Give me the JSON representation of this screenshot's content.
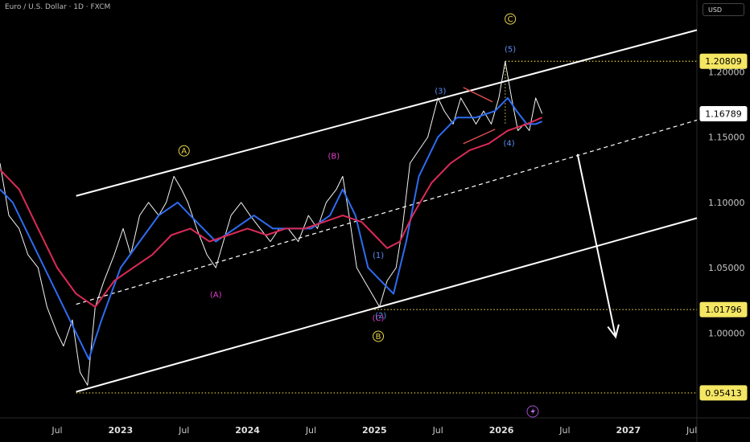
{
  "header": {
    "title": "Euro / U.S. Dollar · 1D · FXCM",
    "currency_button": "USD"
  },
  "chart_data": {
    "type": "line",
    "title": "Euro / U.S. Dollar · 1D · FXCM",
    "xlabel": "",
    "ylabel": "",
    "ylim": [
      0.935,
      1.255
    ],
    "y_ticks": [
      1.0,
      1.05,
      1.1,
      1.15,
      1.2
    ],
    "x_ticks": [
      "Jul",
      "2023",
      "Jul",
      "2024",
      "Jul",
      "2025",
      "Jul",
      "2026",
      "Jul",
      "2027",
      "Jul"
    ],
    "x_tick_dates": [
      2022.5,
      2023.0,
      2023.5,
      2024.0,
      2024.5,
      2025.0,
      2025.5,
      2026.0,
      2026.5,
      2027.0,
      2027.5
    ],
    "xlim": [
      2022.05,
      2027.54
    ],
    "price_tags": [
      {
        "value": "1.20809",
        "style": "yellow"
      },
      {
        "value": "1.16789",
        "style": "white"
      },
      {
        "value": "1.01796",
        "style": "yellow"
      },
      {
        "value": "0.95413",
        "style": "yellow"
      }
    ],
    "series": [
      {
        "color": "#f5f5f5",
        "x": [
          2022.05,
          2022.12,
          2022.2,
          2022.27,
          2022.35,
          2022.42,
          2022.5,
          2022.55,
          2022.62,
          2022.68,
          2022.74,
          2022.8,
          2022.87,
          2022.95,
          2023.02,
          2023.08,
          2023.15,
          2023.22,
          2023.3,
          2023.36,
          2023.42,
          2023.48,
          2023.53,
          2023.6,
          2023.68,
          2023.75,
          2023.81,
          2023.87,
          2023.95,
          2024.02,
          2024.1,
          2024.18,
          2024.25,
          2024.32,
          2024.4,
          2024.48,
          2024.55,
          2024.62,
          2024.7,
          2024.75,
          2024.8,
          2024.86,
          2024.92,
          2024.98,
          2025.04,
          2025.1,
          2025.17,
          2025.22,
          2025.28,
          2025.35,
          2025.42,
          2025.5,
          2025.55,
          2025.62,
          2025.68,
          2025.74,
          2025.8,
          2025.86,
          2025.92,
          2025.98,
          2026.03,
          2026.08,
          2026.13,
          2026.18,
          2026.22,
          2026.27,
          2026.32
        ],
        "y": [
          1.13,
          1.09,
          1.08,
          1.06,
          1.05,
          1.02,
          1.0,
          0.99,
          1.01,
          0.97,
          0.96,
          1.02,
          1.04,
          1.06,
          1.08,
          1.06,
          1.09,
          1.1,
          1.09,
          1.1,
          1.12,
          1.11,
          1.1,
          1.08,
          1.06,
          1.05,
          1.07,
          1.09,
          1.1,
          1.09,
          1.08,
          1.07,
          1.08,
          1.08,
          1.07,
          1.09,
          1.08,
          1.1,
          1.11,
          1.12,
          1.09,
          1.05,
          1.04,
          1.03,
          1.02,
          1.04,
          1.05,
          1.08,
          1.13,
          1.14,
          1.15,
          1.18,
          1.17,
          1.16,
          1.18,
          1.17,
          1.16,
          1.17,
          1.16,
          1.18,
          1.208,
          1.18,
          1.155,
          1.16,
          1.155,
          1.18,
          1.168
        ]
      },
      {
        "color": "#2e6cf0",
        "x": [
          2022.05,
          2022.15,
          2022.3,
          2022.45,
          2022.55,
          2022.65,
          2022.75,
          2022.85,
          2023.0,
          2023.15,
          2023.3,
          2023.45,
          2023.6,
          2023.75,
          2023.9,
          2024.05,
          2024.2,
          2024.35,
          2024.5,
          2024.65,
          2024.75,
          2024.85,
          2024.95,
          2025.05,
          2025.15,
          2025.25,
          2025.35,
          2025.5,
          2025.65,
          2025.8,
          2025.95,
          2026.05,
          2026.12,
          2026.2,
          2026.27,
          2026.32
        ],
        "y": [
          1.11,
          1.1,
          1.07,
          1.04,
          1.02,
          1.0,
          0.98,
          1.01,
          1.05,
          1.07,
          1.09,
          1.1,
          1.085,
          1.07,
          1.08,
          1.09,
          1.08,
          1.08,
          1.08,
          1.09,
          1.11,
          1.09,
          1.05,
          1.04,
          1.03,
          1.07,
          1.12,
          1.15,
          1.165,
          1.165,
          1.17,
          1.18,
          1.17,
          1.16,
          1.16,
          1.162
        ]
      },
      {
        "color": "#dc2a58",
        "x": [
          2022.05,
          2022.2,
          2022.35,
          2022.5,
          2022.65,
          2022.8,
          2022.95,
          2023.1,
          2023.25,
          2023.4,
          2023.55,
          2023.7,
          2023.85,
          2024.0,
          2024.15,
          2024.3,
          2024.45,
          2024.6,
          2024.75,
          2024.9,
          2025.0,
          2025.1,
          2025.2,
          2025.3,
          2025.45,
          2025.6,
          2025.75,
          2025.9,
          2026.05,
          2026.2,
          2026.32
        ],
        "y": [
          1.125,
          1.11,
          1.08,
          1.05,
          1.03,
          1.02,
          1.04,
          1.05,
          1.06,
          1.075,
          1.08,
          1.07,
          1.075,
          1.08,
          1.075,
          1.08,
          1.08,
          1.085,
          1.09,
          1.085,
          1.075,
          1.065,
          1.07,
          1.09,
          1.115,
          1.13,
          1.14,
          1.145,
          1.155,
          1.16,
          1.165
        ]
      }
    ],
    "channel_lines": [
      {
        "style": "solid",
        "x": [
          2022.65,
          2027.54
        ],
        "y": [
          1.105,
          1.232
        ]
      },
      {
        "style": "dashed",
        "x": [
          2022.65,
          2027.54
        ],
        "y": [
          1.022,
          1.163
        ]
      },
      {
        "style": "solid",
        "x": [
          2022.65,
          2027.54
        ],
        "y": [
          0.955,
          1.088
        ]
      }
    ],
    "horizontal_levels": [
      {
        "y": 1.20809,
        "x_start": 2026.03
      },
      {
        "y": 1.01796,
        "x_start": 2025.0
      },
      {
        "y": 0.95413,
        "x_start": 2022.65
      }
    ],
    "projection_arrow": {
      "x": [
        2026.6,
        2026.9
      ],
      "y": [
        1.137,
        0.997
      ],
      "color": "#ffffff"
    },
    "red_annotations": [
      {
        "x": [
          2025.7,
          2025.93
        ],
        "y": [
          1.188,
          1.177
        ]
      },
      {
        "x": [
          2025.7,
          2025.95
        ],
        "y": [
          1.145,
          1.156
        ]
      }
    ],
    "wave_labels": [
      {
        "text": "A",
        "circled": true,
        "color": "#e8d24a",
        "x": 2023.5,
        "y": 1.1395
      },
      {
        "text": "B",
        "circled": true,
        "color": "#e8d24a",
        "x": 2025.03,
        "y": 0.9975
      },
      {
        "text": "C",
        "circled": true,
        "color": "#e8d24a",
        "x": 2026.07,
        "y": 1.2405
      },
      {
        "text": "(A)",
        "circled": false,
        "color": "#e040c8",
        "x": 2023.75,
        "y": 1.0295
      },
      {
        "text": "(B)",
        "circled": false,
        "color": "#e040c8",
        "x": 2024.68,
        "y": 1.1355
      },
      {
        "text": "(C)",
        "circled": false,
        "color": "#e040c8",
        "x": 2025.03,
        "y": 1.0115
      },
      {
        "text": "(1)",
        "circled": false,
        "color": "#5b8ff5",
        "x": 2025.03,
        "y": 1.0595
      },
      {
        "text": "(2)",
        "circled": false,
        "color": "#5b8ff5",
        "x": 2025.05,
        "y": 1.0135
      },
      {
        "text": "(3)",
        "circled": false,
        "color": "#5b8ff5",
        "x": 2025.52,
        "y": 1.1855
      },
      {
        "text": "(4)",
        "circled": false,
        "color": "#5b8ff5",
        "x": 2026.06,
        "y": 1.1455
      },
      {
        "text": "(5)",
        "circled": false,
        "color": "#5b8ff5",
        "x": 2026.07,
        "y": 1.2175
      }
    ]
  },
  "footer": {
    "flash_icon": "lightning-icon"
  }
}
